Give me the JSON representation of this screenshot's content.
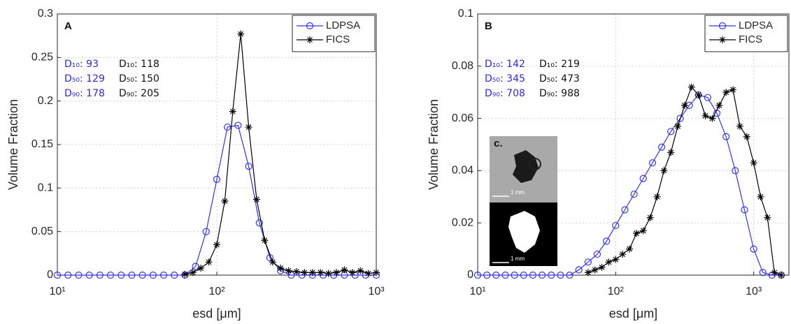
{
  "chart_data": [
    {
      "type": "line",
      "label": "A",
      "xlabel": "esd [μm]",
      "ylabel": "Volume Fraction",
      "xscale": "log",
      "grid": true,
      "legend": "upper right",
      "xlim": [
        10,
        1000
      ],
      "xticks": [
        {
          "value": 10,
          "label": "10¹"
        },
        {
          "value": 100,
          "label": "10²"
        },
        {
          "value": 1000,
          "label": "10³"
        }
      ],
      "ylim": [
        0,
        0.3
      ],
      "yticks": [
        0,
        0.05,
        0.1,
        0.15,
        0.2,
        0.25,
        0.3
      ],
      "stats": [
        {
          "color": "#2a2ae0",
          "lines": [
            "D₁₀: 93",
            "D₅₀: 129",
            "D₉₀: 178"
          ]
        },
        {
          "color": "#111111",
          "lines": [
            "D₁₀: 118",
            "D₅₀: 150",
            "D₉₀: 205"
          ]
        }
      ],
      "series": [
        {
          "name": "LDPSA",
          "color": "#3333ee",
          "marker": "circle",
          "x": [
            10,
            11.66,
            13.59,
            15.85,
            18.48,
            21.54,
            25.12,
            29.29,
            34.15,
            39.81,
            46.42,
            54.12,
            63.1,
            73.56,
            85.77,
            100,
            116.6,
            135.9,
            158.5,
            184.8,
            215.4,
            251.2,
            292.9,
            341.5,
            398.1,
            464.2,
            541.2,
            631.0,
            735.6,
            857.7,
            1000
          ],
          "values": [
            0,
            0,
            0,
            0,
            0,
            0,
            0,
            0,
            0,
            0,
            0,
            0,
            0,
            0.01,
            0.05,
            0.11,
            0.17,
            0.172,
            0.125,
            0.06,
            0.02,
            0.005,
            0,
            0,
            0,
            0,
            0,
            0,
            0,
            0,
            0
          ]
        },
        {
          "name": "FICS",
          "color": "#000000",
          "marker": "star",
          "x": [
            63.1,
            70.8,
            79.4,
            89.1,
            100,
            112.2,
            125.9,
            141.3,
            158.5,
            177.8,
            199.5,
            223.9,
            251.2,
            281.8,
            316.2,
            354.8,
            398.1,
            446.7,
            501.2,
            562.3,
            631.0,
            707.9,
            794.3,
            891.3,
            1000
          ],
          "values": [
            0.001,
            0.003,
            0.008,
            0.015,
            0.035,
            0.085,
            0.188,
            0.277,
            0.17,
            0.087,
            0.04,
            0.015,
            0.008,
            0.005,
            0.004,
            0.003,
            0.003,
            0.003,
            0.002,
            0.003,
            0.006,
            0.003,
            0.005,
            0.002,
            0.003
          ]
        }
      ]
    },
    {
      "type": "line",
      "label": "B",
      "xlabel": "esd [μm]",
      "ylabel": "Volume Fraction",
      "xscale": "log",
      "grid": true,
      "legend": "upper right",
      "xlim": [
        10,
        1800
      ],
      "xticks": [
        {
          "value": 10,
          "label": "10¹"
        },
        {
          "value": 100,
          "label": "10²"
        },
        {
          "value": 1000,
          "label": "10³"
        }
      ],
      "ylim": [
        0,
        0.1
      ],
      "yticks": [
        0,
        0.02,
        0.04,
        0.06,
        0.08,
        0.1
      ],
      "stats": [
        {
          "color": "#2a2ae0",
          "lines": [
            "D₁₀: 142",
            "D₅₀: 345",
            "D₉₀: 708"
          ]
        },
        {
          "color": "#111111",
          "lines": [
            "D₁₀: 219",
            "D₅₀: 473",
            "D₉₀: 988"
          ]
        }
      ],
      "inset": {
        "label": "c.",
        "scale_labels": [
          "1 mm",
          "1 mm"
        ]
      },
      "series": [
        {
          "name": "LDPSA",
          "color": "#3333ee",
          "marker": "circle",
          "x": [
            10,
            11.66,
            13.59,
            15.85,
            18.48,
            21.54,
            25.12,
            29.29,
            34.15,
            39.81,
            46.42,
            54.12,
            63.1,
            73.56,
            85.77,
            100,
            116.6,
            135.9,
            158.5,
            184.8,
            215.4,
            251.2,
            292.9,
            341.5,
            398.1,
            464.2,
            541.2,
            631.0,
            735.6,
            857.7,
            1000,
            1166,
            1359,
            1585
          ],
          "values": [
            0,
            0,
            0,
            0,
            0,
            0,
            0,
            0,
            0,
            0,
            0,
            0.002,
            0.005,
            0.008,
            0.013,
            0.019,
            0.025,
            0.031,
            0.037,
            0.043,
            0.049,
            0.055,
            0.06,
            0.065,
            0.069,
            0.068,
            0.062,
            0.053,
            0.04,
            0.025,
            0.01,
            0.001,
            0,
            0
          ]
        },
        {
          "name": "FICS",
          "color": "#000000",
          "marker": "star",
          "x": [
            63.1,
            70.8,
            79.4,
            89.1,
            100,
            112.2,
            125.9,
            141.3,
            158.5,
            177.8,
            199.5,
            223.9,
            251.2,
            281.8,
            316.2,
            354.8,
            398.1,
            446.7,
            501.2,
            562.3,
            631.0,
            707.9,
            794.3,
            891.3,
            1000,
            1122,
            1259,
            1413,
            1585
          ],
          "values": [
            0.001,
            0.002,
            0.003,
            0.005,
            0.006,
            0.008,
            0.01,
            0.016,
            0.017,
            0.022,
            0.03,
            0.04,
            0.047,
            0.057,
            0.065,
            0.072,
            0.069,
            0.061,
            0.06,
            0.065,
            0.07,
            0.071,
            0.057,
            0.053,
            0.043,
            0.03,
            0.022,
            0.001,
            0
          ]
        }
      ]
    }
  ]
}
